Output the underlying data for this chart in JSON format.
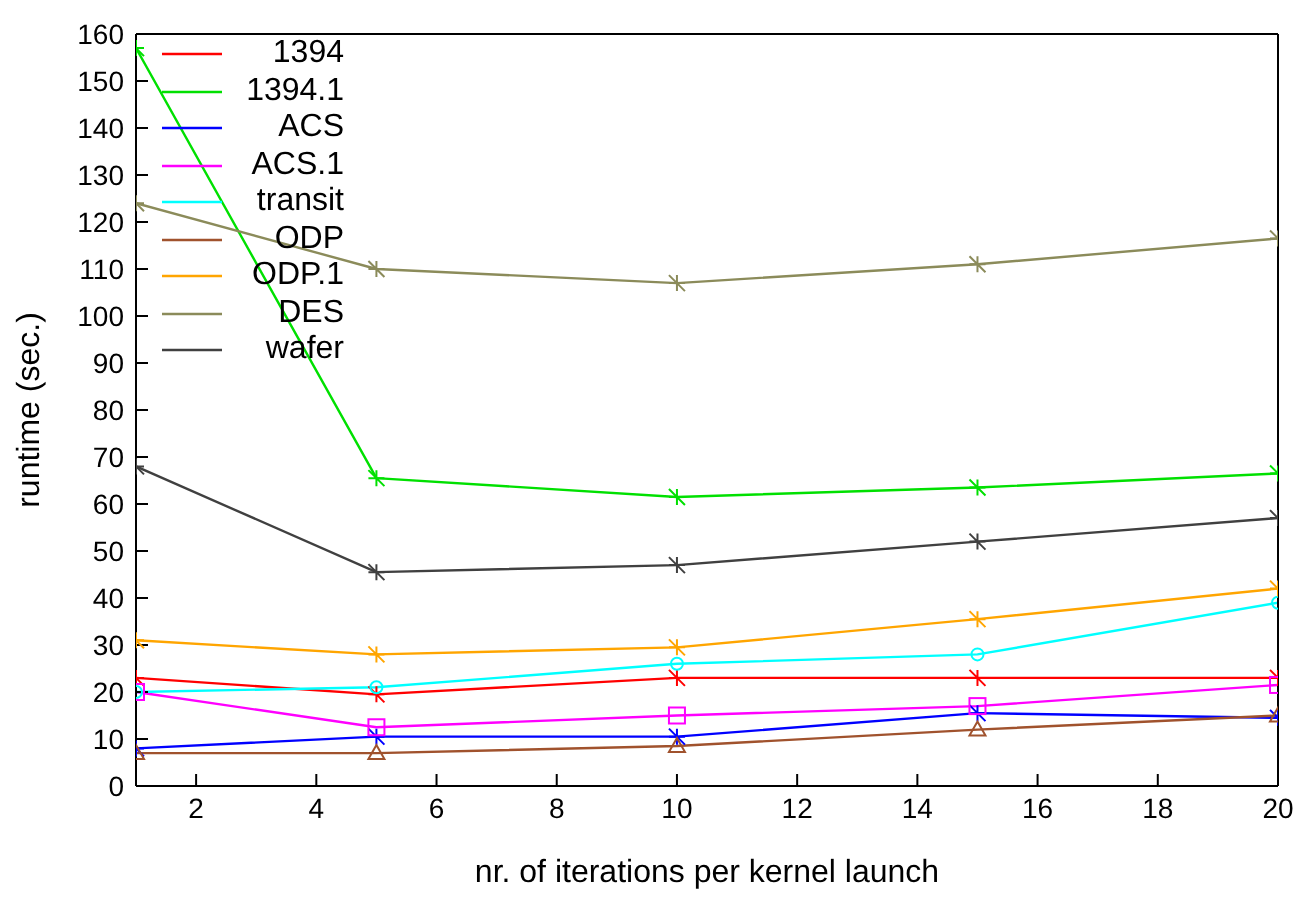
{
  "chart_data": {
    "type": "line",
    "xlabel": "nr. of iterations per kernel launch",
    "ylabel": "runtime (sec.)",
    "x": [
      1,
      5,
      10,
      15,
      20
    ],
    "series": [
      {
        "name": "1394",
        "color": "#ff0000",
        "marker": "cross",
        "values": [
          23,
          19.5,
          23,
          23,
          23
        ]
      },
      {
        "name": "1394.1",
        "color": "#00e000",
        "marker": "cross",
        "values": [
          157,
          65.5,
          61.5,
          63.5,
          66.5
        ]
      },
      {
        "name": "ACS",
        "color": "#0000ff",
        "marker": "cross",
        "values": [
          8,
          10.5,
          10.5,
          15.5,
          14.5
        ]
      },
      {
        "name": "ACS.1",
        "color": "#ff00ff",
        "marker": "square",
        "values": [
          20,
          12.5,
          15,
          17,
          21.5
        ]
      },
      {
        "name": "transit",
        "color": "#00ffff",
        "marker": "circle",
        "values": [
          20,
          21,
          26,
          28,
          39
        ]
      },
      {
        "name": "ODP",
        "color": "#a0522d",
        "marker": "triangle",
        "values": [
          7,
          7,
          8.5,
          12,
          15
        ]
      },
      {
        "name": "ODP.1",
        "color": "#ffa500",
        "marker": "cross",
        "values": [
          31,
          28,
          29.5,
          35.5,
          42
        ]
      },
      {
        "name": "DES",
        "color": "#8b8b5a",
        "marker": "cross",
        "values": [
          124,
          110,
          107,
          111,
          116.5
        ]
      },
      {
        "name": "wafer",
        "color": "#404040",
        "marker": "cross",
        "values": [
          68,
          45.5,
          47,
          52,
          57
        ]
      }
    ],
    "xlim": [
      1,
      20
    ],
    "xticks": [
      2,
      4,
      6,
      8,
      10,
      12,
      14,
      16,
      18,
      20
    ],
    "ylim": [
      0,
      160
    ],
    "yticks": [
      0,
      10,
      20,
      30,
      40,
      50,
      60,
      70,
      80,
      90,
      100,
      110,
      120,
      130,
      140,
      150,
      160
    ],
    "grid": false,
    "legend": "top left",
    "line_style": "solid"
  }
}
